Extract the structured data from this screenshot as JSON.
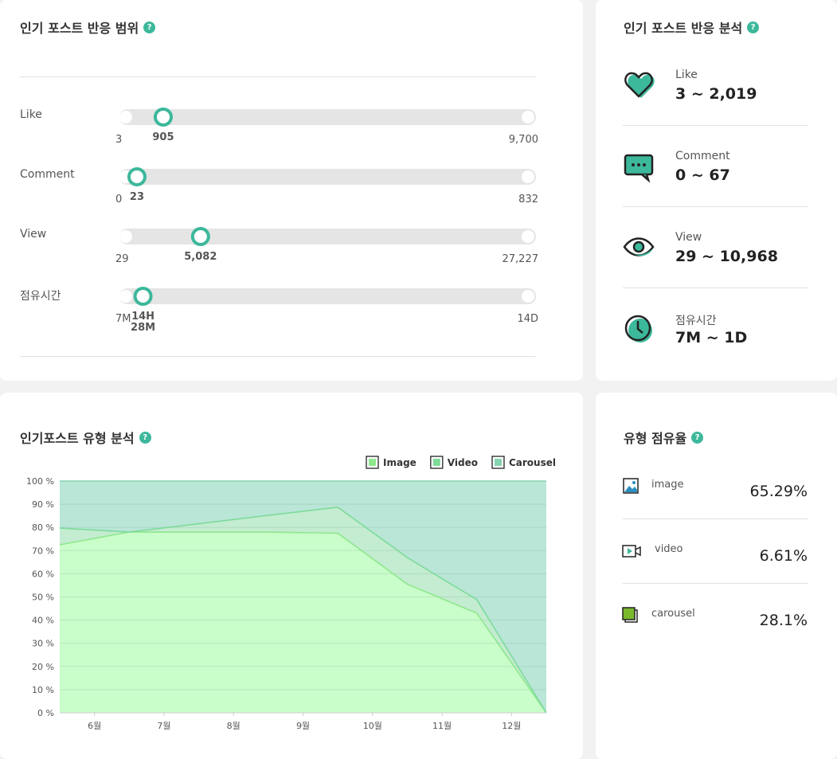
{
  "help_icon": "?",
  "range_panel": {
    "title": "인기 포스트 반응 범위",
    "sliders": [
      {
        "label": "Like",
        "min": 3,
        "max": 9700,
        "value": 905,
        "min_label": "3",
        "max_label": "9,700",
        "value_label": [
          "905"
        ]
      },
      {
        "label": "Comment",
        "min": 0,
        "max": 832,
        "value": 23,
        "min_label": "0",
        "max_label": "832",
        "value_label": [
          "23"
        ]
      },
      {
        "label": "View",
        "min": 29,
        "max": 27227,
        "value": 5082,
        "min_label": "29",
        "max_label": "27,227",
        "value_label": [
          "5,082"
        ]
      },
      {
        "label": "점유시간",
        "min": 7,
        "max": 20160,
        "value": 868,
        "min_label": "7M",
        "max_label": "14D",
        "value_label": [
          "14H",
          "28M"
        ]
      }
    ]
  },
  "analysis_panel": {
    "title": "인기 포스트 반응 분석",
    "items": [
      {
        "label": "Like",
        "value": "3 ~ 2,019"
      },
      {
        "label": "Comment",
        "value": "0 ~ 67"
      },
      {
        "label": "View",
        "value": "29 ~ 10,968"
      },
      {
        "label": "점유시간",
        "value": "7M ~ 1D"
      }
    ]
  },
  "share_panel": {
    "title": "유형 점유율",
    "items": [
      {
        "label": "image",
        "value": "65.29%"
      },
      {
        "label": "video",
        "value": "6.61%"
      },
      {
        "label": "carousel",
        "value": "28.1%"
      }
    ]
  },
  "chart_data": {
    "type": "stacked_area",
    "title": "인기포스트 유형 분석",
    "x": [
      0,
      1,
      2,
      3,
      4,
      5,
      6,
      7
    ],
    "xlim": [
      0,
      7
    ],
    "xticks": [
      {
        "value": 0.5,
        "label": "6월"
      },
      {
        "value": 1.5,
        "label": "7월"
      },
      {
        "value": 2.5,
        "label": "8월"
      },
      {
        "value": 3.5,
        "label": "9월"
      },
      {
        "value": 4.5,
        "label": "10월"
      },
      {
        "value": 5.5,
        "label": "11월"
      },
      {
        "value": 6.5,
        "label": "12월"
      }
    ],
    "ylim": [
      0,
      100
    ],
    "yticks": [
      {
        "value": 0,
        "label": "0 %"
      },
      {
        "value": 10,
        "label": "10 %"
      },
      {
        "value": 20,
        "label": "20 %"
      },
      {
        "value": 30,
        "label": "30 %"
      },
      {
        "value": 40,
        "label": "40 %"
      },
      {
        "value": 50,
        "label": "50 %"
      },
      {
        "value": 60,
        "label": "60 %"
      },
      {
        "value": 70,
        "label": "70 %"
      },
      {
        "value": 80,
        "label": "80 %"
      },
      {
        "value": 90,
        "label": "90 %"
      },
      {
        "value": 100,
        "label": "100 %"
      }
    ],
    "grid": true,
    "series": [
      {
        "name": "Image",
        "color": "#c9fdc9",
        "line": "#8ee88e",
        "values": [
          72.5,
          78,
          78,
          78,
          77.5,
          55.5,
          43,
          0
        ]
      },
      {
        "name": "Video",
        "color": "#c4ecd0",
        "line": "#7ddb9a",
        "values": [
          7.2,
          0,
          3.6,
          7.2,
          11.2,
          11.5,
          5.8,
          0
        ]
      },
      {
        "name": "Carousel",
        "color": "#b9e6d7",
        "line": "#86d4b0",
        "values": [
          20.3,
          22,
          18.4,
          14.8,
          11.3,
          33,
          51.2,
          100
        ]
      }
    ]
  }
}
